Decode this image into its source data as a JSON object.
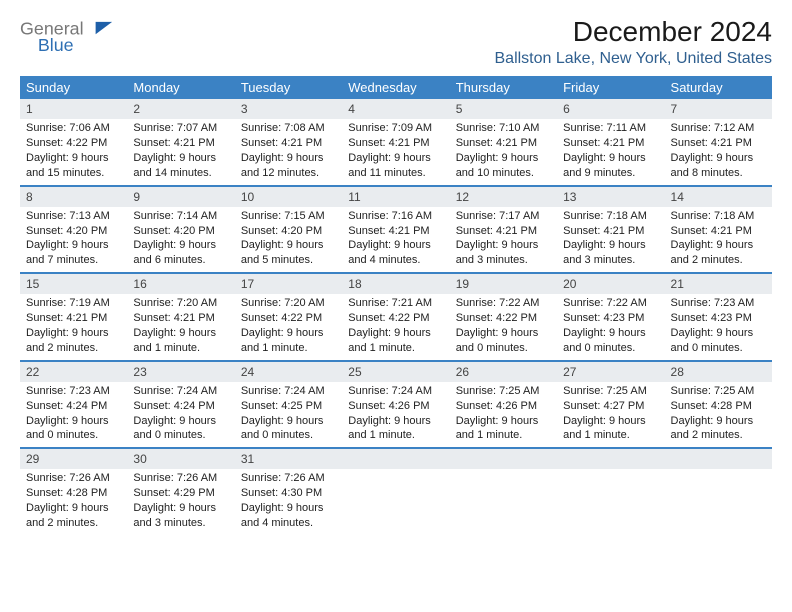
{
  "logo": {
    "word1": "General",
    "word2": "Blue",
    "word1_color": "#777777",
    "word2_color": "#2e6fb3",
    "sail_color": "#1e5fa8"
  },
  "header": {
    "month_title": "December 2024",
    "location": "Ballston Lake, New York, United States"
  },
  "calendar": {
    "header_bg": "#3b82c4",
    "header_text_color": "#ffffff",
    "daynum_bg": "#e9ecef",
    "row_divider_color": "#3b82c4",
    "day_names": [
      "Sunday",
      "Monday",
      "Tuesday",
      "Wednesday",
      "Thursday",
      "Friday",
      "Saturday"
    ],
    "weeks": [
      [
        {
          "n": "1",
          "sr": "Sunrise: 7:06 AM",
          "ss": "Sunset: 4:22 PM",
          "d1": "Daylight: 9 hours",
          "d2": "and 15 minutes."
        },
        {
          "n": "2",
          "sr": "Sunrise: 7:07 AM",
          "ss": "Sunset: 4:21 PM",
          "d1": "Daylight: 9 hours",
          "d2": "and 14 minutes."
        },
        {
          "n": "3",
          "sr": "Sunrise: 7:08 AM",
          "ss": "Sunset: 4:21 PM",
          "d1": "Daylight: 9 hours",
          "d2": "and 12 minutes."
        },
        {
          "n": "4",
          "sr": "Sunrise: 7:09 AM",
          "ss": "Sunset: 4:21 PM",
          "d1": "Daylight: 9 hours",
          "d2": "and 11 minutes."
        },
        {
          "n": "5",
          "sr": "Sunrise: 7:10 AM",
          "ss": "Sunset: 4:21 PM",
          "d1": "Daylight: 9 hours",
          "d2": "and 10 minutes."
        },
        {
          "n": "6",
          "sr": "Sunrise: 7:11 AM",
          "ss": "Sunset: 4:21 PM",
          "d1": "Daylight: 9 hours",
          "d2": "and 9 minutes."
        },
        {
          "n": "7",
          "sr": "Sunrise: 7:12 AM",
          "ss": "Sunset: 4:21 PM",
          "d1": "Daylight: 9 hours",
          "d2": "and 8 minutes."
        }
      ],
      [
        {
          "n": "8",
          "sr": "Sunrise: 7:13 AM",
          "ss": "Sunset: 4:20 PM",
          "d1": "Daylight: 9 hours",
          "d2": "and 7 minutes."
        },
        {
          "n": "9",
          "sr": "Sunrise: 7:14 AM",
          "ss": "Sunset: 4:20 PM",
          "d1": "Daylight: 9 hours",
          "d2": "and 6 minutes."
        },
        {
          "n": "10",
          "sr": "Sunrise: 7:15 AM",
          "ss": "Sunset: 4:20 PM",
          "d1": "Daylight: 9 hours",
          "d2": "and 5 minutes."
        },
        {
          "n": "11",
          "sr": "Sunrise: 7:16 AM",
          "ss": "Sunset: 4:21 PM",
          "d1": "Daylight: 9 hours",
          "d2": "and 4 minutes."
        },
        {
          "n": "12",
          "sr": "Sunrise: 7:17 AM",
          "ss": "Sunset: 4:21 PM",
          "d1": "Daylight: 9 hours",
          "d2": "and 3 minutes."
        },
        {
          "n": "13",
          "sr": "Sunrise: 7:18 AM",
          "ss": "Sunset: 4:21 PM",
          "d1": "Daylight: 9 hours",
          "d2": "and 3 minutes."
        },
        {
          "n": "14",
          "sr": "Sunrise: 7:18 AM",
          "ss": "Sunset: 4:21 PM",
          "d1": "Daylight: 9 hours",
          "d2": "and 2 minutes."
        }
      ],
      [
        {
          "n": "15",
          "sr": "Sunrise: 7:19 AM",
          "ss": "Sunset: 4:21 PM",
          "d1": "Daylight: 9 hours",
          "d2": "and 2 minutes."
        },
        {
          "n": "16",
          "sr": "Sunrise: 7:20 AM",
          "ss": "Sunset: 4:21 PM",
          "d1": "Daylight: 9 hours",
          "d2": "and 1 minute."
        },
        {
          "n": "17",
          "sr": "Sunrise: 7:20 AM",
          "ss": "Sunset: 4:22 PM",
          "d1": "Daylight: 9 hours",
          "d2": "and 1 minute."
        },
        {
          "n": "18",
          "sr": "Sunrise: 7:21 AM",
          "ss": "Sunset: 4:22 PM",
          "d1": "Daylight: 9 hours",
          "d2": "and 1 minute."
        },
        {
          "n": "19",
          "sr": "Sunrise: 7:22 AM",
          "ss": "Sunset: 4:22 PM",
          "d1": "Daylight: 9 hours",
          "d2": "and 0 minutes."
        },
        {
          "n": "20",
          "sr": "Sunrise: 7:22 AM",
          "ss": "Sunset: 4:23 PM",
          "d1": "Daylight: 9 hours",
          "d2": "and 0 minutes."
        },
        {
          "n": "21",
          "sr": "Sunrise: 7:23 AM",
          "ss": "Sunset: 4:23 PM",
          "d1": "Daylight: 9 hours",
          "d2": "and 0 minutes."
        }
      ],
      [
        {
          "n": "22",
          "sr": "Sunrise: 7:23 AM",
          "ss": "Sunset: 4:24 PM",
          "d1": "Daylight: 9 hours",
          "d2": "and 0 minutes."
        },
        {
          "n": "23",
          "sr": "Sunrise: 7:24 AM",
          "ss": "Sunset: 4:24 PM",
          "d1": "Daylight: 9 hours",
          "d2": "and 0 minutes."
        },
        {
          "n": "24",
          "sr": "Sunrise: 7:24 AM",
          "ss": "Sunset: 4:25 PM",
          "d1": "Daylight: 9 hours",
          "d2": "and 0 minutes."
        },
        {
          "n": "25",
          "sr": "Sunrise: 7:24 AM",
          "ss": "Sunset: 4:26 PM",
          "d1": "Daylight: 9 hours",
          "d2": "and 1 minute."
        },
        {
          "n": "26",
          "sr": "Sunrise: 7:25 AM",
          "ss": "Sunset: 4:26 PM",
          "d1": "Daylight: 9 hours",
          "d2": "and 1 minute."
        },
        {
          "n": "27",
          "sr": "Sunrise: 7:25 AM",
          "ss": "Sunset: 4:27 PM",
          "d1": "Daylight: 9 hours",
          "d2": "and 1 minute."
        },
        {
          "n": "28",
          "sr": "Sunrise: 7:25 AM",
          "ss": "Sunset: 4:28 PM",
          "d1": "Daylight: 9 hours",
          "d2": "and 2 minutes."
        }
      ],
      [
        {
          "n": "29",
          "sr": "Sunrise: 7:26 AM",
          "ss": "Sunset: 4:28 PM",
          "d1": "Daylight: 9 hours",
          "d2": "and 2 minutes."
        },
        {
          "n": "30",
          "sr": "Sunrise: 7:26 AM",
          "ss": "Sunset: 4:29 PM",
          "d1": "Daylight: 9 hours",
          "d2": "and 3 minutes."
        },
        {
          "n": "31",
          "sr": "Sunrise: 7:26 AM",
          "ss": "Sunset: 4:30 PM",
          "d1": "Daylight: 9 hours",
          "d2": "and 4 minutes."
        },
        null,
        null,
        null,
        null
      ]
    ]
  }
}
